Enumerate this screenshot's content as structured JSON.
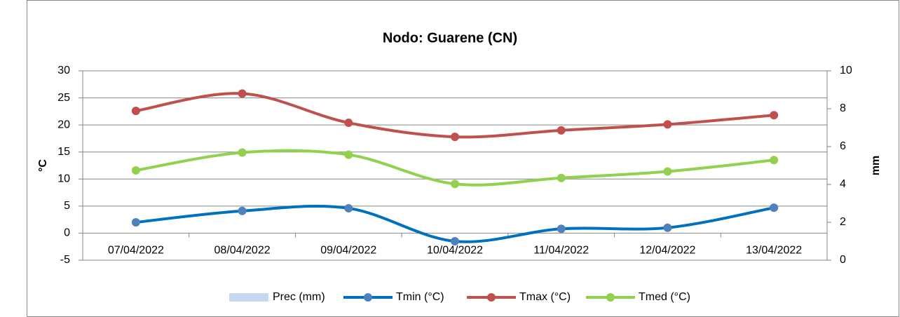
{
  "chart_data": {
    "type": "line",
    "title": "Nodo: Guarene (CN)",
    "y_label": "°C",
    "y2_label": "mm",
    "categories": [
      "07/04/2022",
      "08/04/2022",
      "09/04/2022",
      "10/04/2022",
      "11/04/2022",
      "12/04/2022",
      "13/04/2022"
    ],
    "series": [
      {
        "name": "Prec (mm)",
        "color": "#c6d9f1",
        "kind": "bar",
        "axis": "y2",
        "values": [
          0,
          0,
          0,
          0,
          0,
          0,
          0
        ]
      },
      {
        "name": "Tmin (°C)",
        "color": "#0070c0",
        "marker_color": "#4f81bd",
        "values": [
          2.0,
          4.1,
          4.6,
          -1.5,
          0.8,
          1.0,
          4.7
        ]
      },
      {
        "name": "Tmax (°C)",
        "color": "#c0504d",
        "marker_color": "#c0504d",
        "values": [
          22.6,
          25.8,
          20.4,
          17.8,
          19.0,
          20.1,
          21.8
        ]
      },
      {
        "name": "Tmed (°C)",
        "color": "#92d050",
        "marker_color": "#92d050",
        "values": [
          11.6,
          14.9,
          14.5,
          9.1,
          10.2,
          11.4,
          13.5
        ]
      }
    ],
    "ylim": [
      -5,
      30
    ],
    "yticks": [
      -5,
      0,
      5,
      10,
      15,
      20,
      25,
      30
    ],
    "y2lim": [
      0,
      10
    ],
    "y2ticks": [
      0,
      2,
      4,
      6,
      8,
      10
    ],
    "grid": true,
    "smooth": true,
    "legend": "bottom"
  }
}
